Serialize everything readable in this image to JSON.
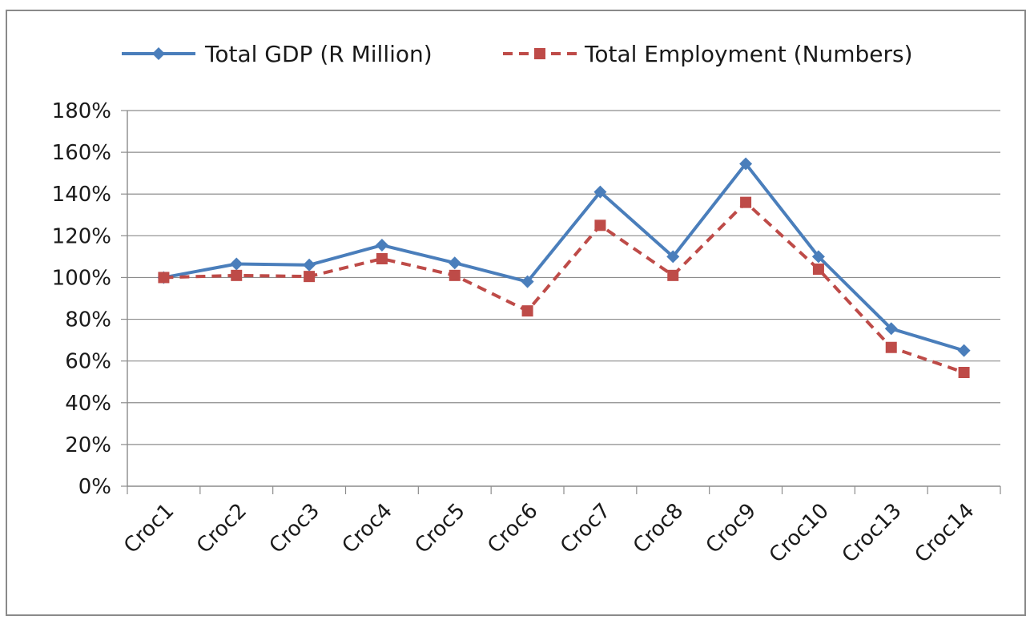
{
  "chart_data": {
    "type": "line",
    "title": "",
    "xlabel": "",
    "ylabel": "",
    "categories": [
      "Croc1",
      "Croc2",
      "Croc3",
      "Croc4",
      "Croc5",
      "Croc6",
      "Croc7",
      "Croc8",
      "Croc9",
      "Croc10",
      "Croc13",
      "Croc14"
    ],
    "series": [
      {
        "name": "Total GDP (R Million)",
        "color": "#4a7ebb",
        "marker": "diamond",
        "dash": "solid",
        "values": [
          1.0,
          1.065,
          1.06,
          1.155,
          1.07,
          0.98,
          1.41,
          1.1,
          1.545,
          1.1,
          0.755,
          0.65
        ]
      },
      {
        "name": "Total Employment (Numbers)",
        "color": "#be4b48",
        "marker": "square",
        "dash": "dashed",
        "values": [
          1.0,
          1.01,
          1.005,
          1.09,
          1.01,
          0.84,
          1.25,
          1.01,
          1.36,
          1.04,
          0.665,
          0.545
        ]
      }
    ],
    "ylim": [
      0,
      1.8
    ],
    "ytick_labels": [
      "0%",
      "20%",
      "40%",
      "60%",
      "80%",
      "100%",
      "120%",
      "140%",
      "160%",
      "180%"
    ],
    "grid": true,
    "legend_position": "top"
  }
}
